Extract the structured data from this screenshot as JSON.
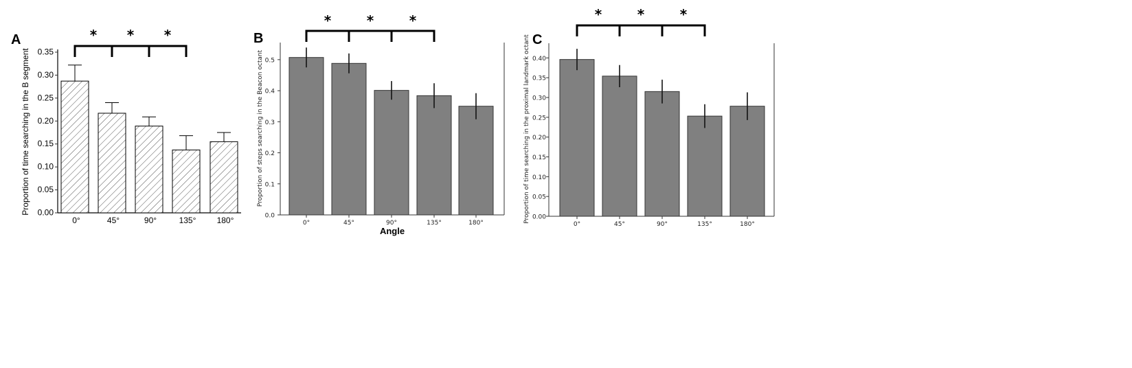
{
  "chart_data": [
    {
      "panel": "A",
      "type": "bar",
      "style": "hatched",
      "categories": [
        "0°",
        "45°",
        "90°",
        "135°",
        "180°"
      ],
      "values": [
        0.287,
        0.217,
        0.189,
        0.137,
        0.155
      ],
      "errors": [
        0.035,
        0.023,
        0.02,
        0.031,
        0.02
      ],
      "ylabel": "Proportion of time searching in the B segment",
      "xlabel": "",
      "ylim": [
        0,
        0.35
      ],
      "yticks": [
        "0.00",
        "0.05",
        "0.10",
        "0.15",
        "0.20",
        "0.25",
        "0.30",
        "0.35"
      ],
      "significance": "*"
    },
    {
      "panel": "B",
      "type": "bar",
      "style": "solid",
      "categories": [
        "0°",
        "45°",
        "90°",
        "135°",
        "180°"
      ],
      "values": [
        0.507,
        0.488,
        0.401,
        0.384,
        0.35
      ],
      "errors": [
        0.032,
        0.032,
        0.03,
        0.04,
        0.042
      ],
      "ylabel": "Proportion of steps searching in the Beacon octant",
      "xlabel": "Angle",
      "ylim": [
        0,
        0.555
      ],
      "yticks": [
        "0.0",
        "0.1",
        "0.2",
        "0.3",
        "0.4",
        "0.5"
      ],
      "significance": "*"
    },
    {
      "panel": "C",
      "type": "bar",
      "style": "solid",
      "categories": [
        "0°",
        "45°",
        "90°",
        "135°",
        "180°"
      ],
      "values": [
        0.396,
        0.354,
        0.315,
        0.253,
        0.278
      ],
      "errors": [
        0.027,
        0.028,
        0.03,
        0.03,
        0.035
      ],
      "ylabel": "Proportion of time searching in the proximal landmark octant",
      "xlabel": "",
      "ylim": [
        0,
        0.437
      ],
      "yticks": [
        "0.00",
        "0.05",
        "0.10",
        "0.15",
        "0.20",
        "0.25",
        "0.30",
        "0.35",
        "0.40"
      ],
      "significance": "*"
    }
  ]
}
